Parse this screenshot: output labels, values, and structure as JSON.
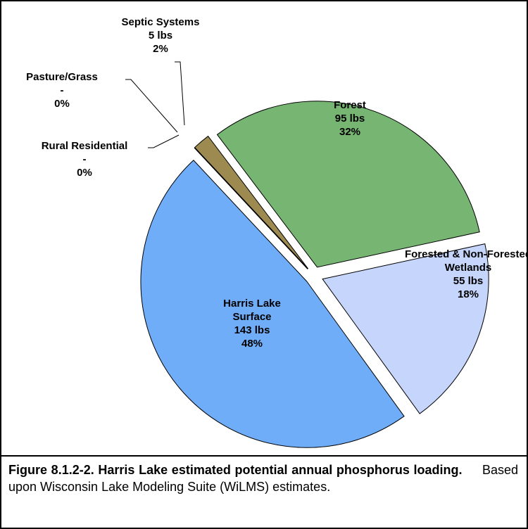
{
  "chart_data": {
    "type": "pie",
    "categories": [
      "Forest",
      "Forested & Non-Forested Wetlands",
      "Harris Lake Surface",
      "Rural Residential",
      "Pasture/Grass",
      "Septic Systems"
    ],
    "values": [
      95,
      55,
      143,
      0,
      0,
      5
    ],
    "value_labels": [
      "95  lbs",
      "55 lbs",
      "143 lbs",
      "-",
      "-",
      "5 lbs"
    ],
    "percent_labels": [
      "32%",
      "18%",
      "48%",
      "0%",
      "0%",
      "2%"
    ],
    "colors": [
      "#77b573",
      "#c5d5fb",
      "#70adf8",
      "#8faa5a",
      "#b0a070",
      "#9c8a50"
    ]
  },
  "caption": {
    "label": "Figure 8.1.2-2.  Harris Lake estimated potential annual phosphorus loading.",
    "text": "Based upon Wisconsin Lake Modeling Suite (WiLMS) estimates."
  }
}
